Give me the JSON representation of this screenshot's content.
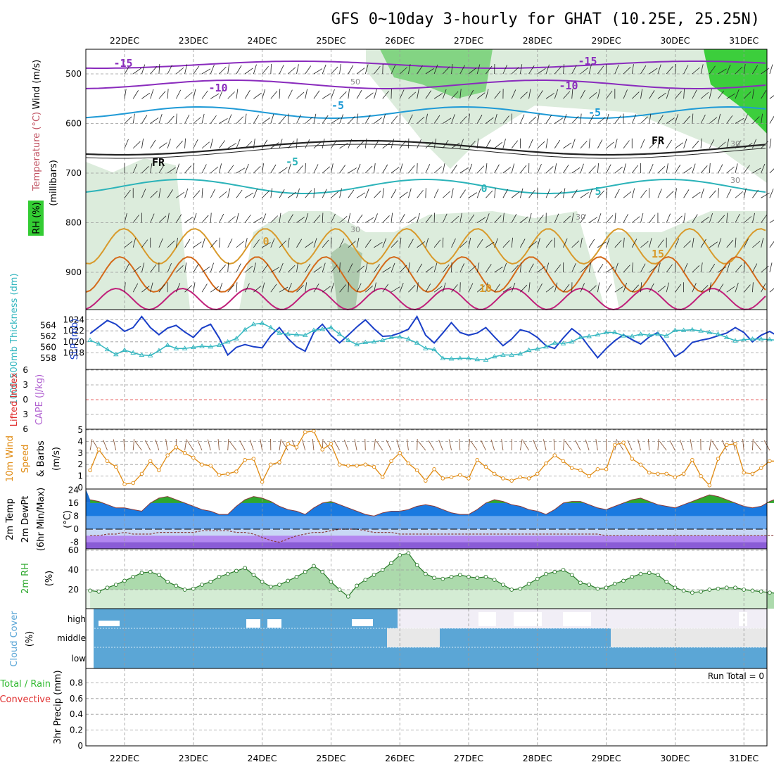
{
  "title": "GFS 0~10day 3-hourly for GHAT (10.25E, 25.25N)",
  "dates": [
    "22DEC",
    "23DEC",
    "24DEC",
    "25DEC",
    "26DEC",
    "27DEC",
    "28DEC",
    "29DEC",
    "30DEC",
    "31DEC"
  ],
  "colors": {
    "rh_green": "#d8ead8",
    "wind_green": "#33cc33",
    "slp": "#1a3fc8",
    "thickness": "#35b7c0",
    "lifted": "#e03030",
    "cape": "#b060d0",
    "wind10": "#e08a10",
    "temp": "#2ea82e",
    "rh2m": "#2ea82e",
    "cloud": "#5ba6d6",
    "precip_total": "#33bb33",
    "precip_conv": "#e03030"
  },
  "panel_upper": {
    "ylabel_lines": [
      "Wind (m/s)",
      "Temperature (°C)",
      "RH (%)"
    ],
    "yaxis_label": "(millibars)",
    "yticks": [
      "500",
      "600",
      "700",
      "800",
      "900"
    ],
    "isotherm_labels": [
      "-15",
      "-10",
      "-5",
      "FR",
      "-5",
      "5",
      "0",
      "0",
      "15",
      "10",
      "-15",
      "-10",
      "-5",
      "FR"
    ],
    "rh_labels": [
      "50",
      "30",
      "30",
      "30",
      "30"
    ]
  },
  "panel_slp": {
    "ylabel_left": "1000-500mb Thickness (dm)",
    "ylabel_right": "SLP (mb)",
    "yticks_left": [
      "564",
      "562",
      "560",
      "558"
    ],
    "yticks_right": [
      "1024",
      "1022",
      "1020",
      "1018"
    ]
  },
  "panel_lifted": {
    "ylabel_left": "Lifted Index",
    "ylabel_right": "CAPE (J/kg)",
    "yticks": [
      "-6",
      "-3",
      "0",
      "3",
      "6"
    ]
  },
  "panel_wind10": {
    "ylabel_lines": [
      "10m Wind",
      "Speed",
      "& Barbs",
      "(m/s)"
    ],
    "yticks": [
      "5",
      "4",
      "3",
      "2",
      "1",
      "0"
    ]
  },
  "panel_temp": {
    "ylabel_lines": [
      "2m Temp",
      "2m DewPt",
      "(6hr Min/Max)",
      "(°C)"
    ],
    "yticks": [
      "24",
      "16",
      "8",
      "0",
      "-8"
    ]
  },
  "panel_rh": {
    "ylabel_lines": [
      "2m RH",
      "(%)"
    ],
    "yticks": [
      "60",
      "40",
      "20"
    ]
  },
  "panel_cloud": {
    "ylabel_lines": [
      "Cloud Cover",
      "(%)"
    ],
    "levels": [
      "high",
      "middle",
      "low"
    ]
  },
  "panel_precip": {
    "ylabel_lines": [
      "Total / Rain",
      "Convective",
      "3hr Precip (mm)"
    ],
    "yticks": [
      "0.8",
      "0.6",
      "0.4",
      "0.2",
      "0"
    ],
    "run_total": "Run Total = 0"
  },
  "chart_data": {
    "type": "line",
    "x": [
      "21DEC 12",
      "21DEC 15",
      "21DEC 18",
      "21DEC 21",
      "22DEC 00",
      "22DEC 03",
      "22DEC 06",
      "22DEC 09",
      "22DEC 12",
      "22DEC 15",
      "22DEC 18",
      "22DEC 21",
      "23DEC 00",
      "23DEC 03",
      "23DEC 06",
      "23DEC 09",
      "23DEC 12",
      "23DEC 15",
      "23DEC 18",
      "23DEC 21",
      "24DEC 00",
      "24DEC 03",
      "24DEC 06",
      "24DEC 09",
      "24DEC 12",
      "24DEC 15",
      "24DEC 18",
      "24DEC 21",
      "25DEC 00",
      "25DEC 03",
      "25DEC 06",
      "25DEC 09",
      "25DEC 12",
      "25DEC 15",
      "25DEC 18",
      "25DEC 21",
      "26DEC 00",
      "26DEC 03",
      "26DEC 06",
      "26DEC 09",
      "26DEC 12",
      "26DEC 15",
      "26DEC 18",
      "26DEC 21",
      "27DEC 00",
      "27DEC 03",
      "27DEC 06",
      "27DEC 09",
      "27DEC 12",
      "27DEC 15",
      "27DEC 18",
      "27DEC 21",
      "28DEC 00",
      "28DEC 03",
      "28DEC 06",
      "28DEC 09",
      "28DEC 12",
      "28DEC 15",
      "28DEC 18",
      "28DEC 21",
      "29DEC 00",
      "29DEC 03",
      "29DEC 06",
      "29DEC 09",
      "29DEC 12",
      "29DEC 15",
      "29DEC 18",
      "29DEC 21",
      "30DEC 00",
      "30DEC 03",
      "30DEC 06",
      "30DEC 09",
      "30DEC 12",
      "30DEC 15",
      "30DEC 18",
      "30DEC 21",
      "31DEC 00",
      "31DEC 03",
      "31DEC 06",
      "31DEC 09",
      "31DEC 12"
    ],
    "series": [
      {
        "name": "SLP (mb)",
        "values": [
          1021.5,
          1022.7,
          1023.9,
          1023.2,
          1021.9,
          1022.6,
          1024.6,
          1022.6,
          1021.3,
          1022.5,
          1023.0,
          1021.8,
          1020.8,
          1022.5,
          1023.2,
          1020.7,
          1017.6,
          1019.0,
          1019.5,
          1019.1,
          1018.9,
          1021.1,
          1022.6,
          1020.6,
          1019.1,
          1018.3,
          1021.7,
          1023.2,
          1021.2,
          1019.8,
          1021.2,
          1022.7,
          1024.0,
          1022.4,
          1021.0,
          1021.1,
          1021.6,
          1022.3,
          1024.6,
          1021.2,
          1019.8,
          1021.6,
          1023.5,
          1021.7,
          1021.2,
          1021.6,
          1022.6,
          1020.9,
          1019.3,
          1020.5,
          1022.2,
          1021.8,
          1020.8,
          1019.3,
          1018.8,
          1020.7,
          1022.4,
          1021.2,
          1019.1,
          1017.1,
          1018.8,
          1020.2,
          1021.3,
          1020.4,
          1019.6,
          1020.9,
          1021.7,
          1019.6,
          1017.3,
          1018.3,
          1019.9,
          1020.3,
          1020.6,
          1021.1,
          1021.6,
          1022.6,
          1021.7,
          1020.0,
          1021.2,
          1021.9,
          1021.0
        ]
      },
      {
        "name": "1000-500mb Thickness (dm)",
        "values": [
          561.3,
          560.6,
          559.6,
          558.7,
          559.5,
          559.0,
          558.6,
          558.5,
          559.4,
          560.4,
          559.8,
          559.8,
          560.0,
          560.2,
          560.1,
          560.4,
          561.0,
          561.6,
          563.2,
          564.2,
          564.4,
          563.6,
          562.6,
          562.4,
          562.3,
          562.2,
          563.1,
          563.3,
          563.6,
          562.4,
          561.3,
          560.5,
          560.9,
          561.0,
          561.3,
          561.8,
          561.9,
          561.5,
          560.8,
          559.8,
          559.6,
          558.0,
          557.9,
          558.0,
          558.0,
          557.8,
          557.7,
          558.3,
          558.6,
          558.6,
          558.8,
          559.5,
          559.7,
          560.1,
          560.8,
          560.7,
          561.0,
          561.8,
          562.0,
          562.3,
          562.7,
          562.7,
          562.1,
          562.0,
          562.4,
          562.2,
          562.4,
          562.1,
          563.1,
          563.1,
          563.2,
          563.0,
          562.7,
          562.4,
          561.8,
          561.2,
          561.4,
          561.5,
          561.5,
          561.4,
          561.3
        ]
      },
      {
        "name": "10m Wind Speed (m/s)",
        "values": [
          1.5,
          3.3,
          2.3,
          1.8,
          0.3,
          0.4,
          1.2,
          2.3,
          1.5,
          2.8,
          3.5,
          3.0,
          2.6,
          2.0,
          1.9,
          1.1,
          1.2,
          1.4,
          2.4,
          2.5,
          0.5,
          2.0,
          2.2,
          3.8,
          3.5,
          4.8,
          4.9,
          3.3,
          3.8,
          2.0,
          1.9,
          1.9,
          2.0,
          1.8,
          0.9,
          2.3,
          3.0,
          2.1,
          1.5,
          0.6,
          1.6,
          0.8,
          0.9,
          1.1,
          0.8,
          2.4,
          1.8,
          1.2,
          0.8,
          0.6,
          0.9,
          0.8,
          1.2,
          2.1,
          2.8,
          2.3,
          1.7,
          1.5,
          1.0,
          1.6,
          1.6,
          3.7,
          3.9,
          2.5,
          2.0,
          1.3,
          1.2,
          1.2,
          0.9,
          1.2,
          2.4,
          1.0,
          0.2,
          2.5,
          3.7,
          3.8,
          1.3,
          1.2,
          1.7,
          2.3,
          2.3
        ]
      },
      {
        "name": "2m Temp (°C)",
        "values": [
          18,
          17,
          15,
          13,
          13,
          12,
          11,
          16,
          19,
          20,
          18,
          16,
          14,
          12,
          11,
          9,
          9,
          14,
          18,
          20,
          19,
          17,
          14,
          12,
          11,
          9,
          13,
          16,
          17,
          15,
          13,
          11,
          9,
          8,
          10,
          11,
          11,
          12,
          14,
          15,
          14,
          12,
          10,
          9,
          9,
          12,
          16,
          18,
          17,
          15,
          14,
          12,
          11,
          9,
          12,
          16,
          17,
          17,
          15,
          13,
          12,
          14,
          16,
          18,
          19,
          17,
          15,
          14,
          13,
          15,
          17,
          19,
          21,
          20,
          18,
          16,
          14,
          13,
          14,
          17,
          19
        ]
      },
      {
        "name": "2m DewPt (°C)",
        "values": [
          -4,
          -4,
          -3,
          -3,
          -2,
          -3,
          -3,
          -3,
          -2,
          -2,
          -2,
          -2,
          -2,
          -1,
          -1,
          -1,
          -1,
          -2,
          -2,
          -3,
          -5,
          -7,
          -8,
          -6,
          -4,
          -3,
          -2,
          -2,
          -1,
          0,
          0,
          0,
          -1,
          -2,
          -2,
          -2,
          -3,
          -3,
          -3,
          -3,
          -3,
          -3,
          -3,
          -3,
          -3,
          -3,
          -3,
          -3,
          -3,
          -3,
          -3,
          -3,
          -3,
          -3,
          -3,
          -3,
          -3,
          -3,
          -3,
          -3,
          -4,
          -4,
          -4,
          -4,
          -4,
          -4,
          -4,
          -4,
          -4,
          -4,
          -4,
          -4,
          -4,
          -4,
          -4,
          -4,
          -4,
          -4,
          -4,
          -4,
          -4
        ]
      },
      {
        "name": "2m RH (%)",
        "values": [
          19,
          18,
          22,
          25,
          29,
          33,
          37,
          38,
          35,
          28,
          24,
          20,
          21,
          25,
          28,
          33,
          36,
          39,
          42,
          35,
          28,
          23,
          25,
          29,
          33,
          38,
          44,
          38,
          28,
          20,
          13,
          24,
          30,
          35,
          40,
          47,
          55,
          57,
          45,
          36,
          32,
          31,
          33,
          35,
          33,
          32,
          33,
          30,
          25,
          20,
          21,
          26,
          31,
          36,
          38,
          40,
          35,
          27,
          25,
          21,
          22,
          26,
          29,
          33,
          36,
          37,
          35,
          28,
          22,
          19,
          17,
          18,
          20,
          21,
          22,
          22,
          20,
          19,
          18,
          17,
          16
        ]
      }
    ],
    "ylim_slp": [
      1015,
      1026
    ],
    "ylim_thickness": [
      556,
      566
    ],
    "ylim_wind": [
      0,
      5
    ],
    "ylim_temp": [
      -12,
      24
    ],
    "ylim_rh": [
      0,
      60
    ],
    "precip_values": [],
    "grid": true
  }
}
